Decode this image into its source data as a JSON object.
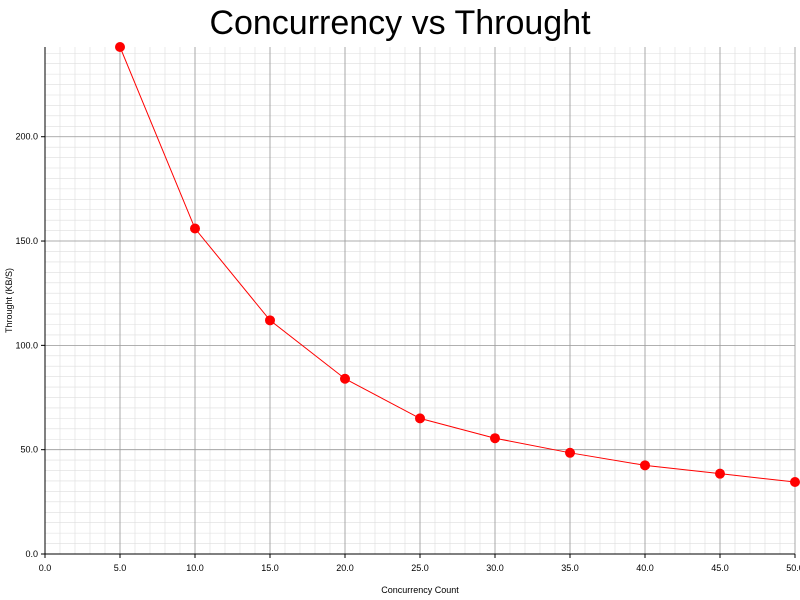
{
  "chart_data": {
    "type": "line",
    "title": "Concurrency vs Throught",
    "xlabel": "Concurrency Count",
    "ylabel": "Throught (KB/S)",
    "xlim": [
      0,
      50
    ],
    "ylim": [
      0,
      243
    ],
    "xticks": [
      "0.0",
      "5.0",
      "10.0",
      "15.0",
      "20.0",
      "25.0",
      "30.0",
      "35.0",
      "40.0",
      "45.0",
      "50.0"
    ],
    "yticks": [
      "0.0",
      "50.0",
      "100.0",
      "150.0",
      "200.0"
    ],
    "grid": true,
    "series": [
      {
        "x": [
          5,
          10,
          15,
          20,
          25,
          30,
          35,
          40,
          45,
          50
        ],
        "values": [
          243,
          156,
          112,
          84,
          65,
          55.5,
          48.5,
          42.5,
          38.5,
          34.5
        ]
      }
    ],
    "colors": {
      "line": "#ff0000",
      "marker": "#ff0000",
      "grid_major": "#999999",
      "grid_minor": "#dddddd"
    }
  }
}
